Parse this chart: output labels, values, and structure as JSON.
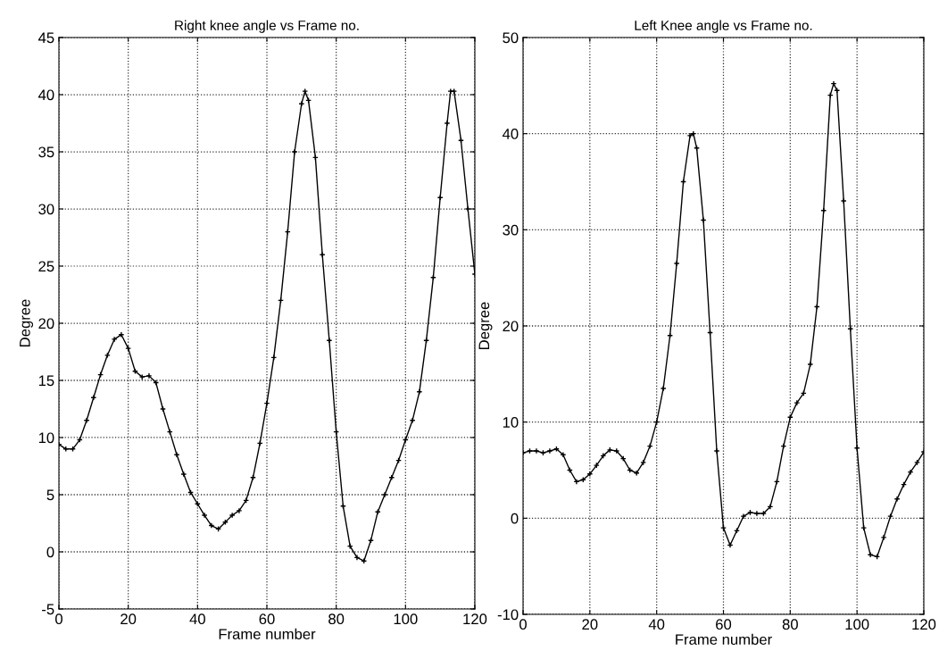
{
  "chart_data": [
    {
      "type": "line",
      "title": "Right knee angle vs Frame no.",
      "xlabel": "Frame number",
      "ylabel": "Degree",
      "xlim": [
        0,
        120
      ],
      "ylim": [
        -5,
        45
      ],
      "xticks": [
        0,
        20,
        40,
        60,
        80,
        100,
        120
      ],
      "yticks": [
        -5,
        0,
        5,
        10,
        15,
        20,
        25,
        30,
        35,
        40,
        45
      ],
      "grid": true,
      "marker": "cross",
      "line_style": "solid",
      "x": [
        0,
        2,
        4,
        6,
        8,
        10,
        12,
        14,
        16,
        18,
        20,
        22,
        24,
        26,
        28,
        30,
        32,
        34,
        36,
        38,
        40,
        42,
        44,
        46,
        48,
        50,
        52,
        54,
        56,
        58,
        60,
        62,
        64,
        66,
        68,
        70,
        71,
        72,
        74,
        76,
        78,
        80,
        82,
        84,
        86,
        88,
        90,
        92,
        94,
        96,
        98,
        100,
        102,
        104,
        106,
        108,
        110,
        112,
        113,
        114,
        116,
        118,
        120
      ],
      "series": [
        {
          "color": "#000000",
          "values": [
            9.4,
            9.0,
            9.0,
            9.8,
            11.5,
            13.5,
            15.5,
            17.2,
            18.6,
            19.0,
            17.8,
            15.8,
            15.3,
            15.4,
            14.8,
            12.5,
            10.5,
            8.5,
            6.8,
            5.2,
            4.2,
            3.2,
            2.3,
            2.0,
            2.6,
            3.2,
            3.6,
            4.5,
            6.5,
            9.5,
            13.0,
            17.0,
            22.0,
            28.0,
            35.0,
            39.2,
            40.3,
            39.5,
            34.5,
            26.0,
            18.5,
            10.5,
            4.0,
            0.5,
            -0.5,
            -0.8,
            1.0,
            3.5,
            5.0,
            6.5,
            8.0,
            9.8,
            11.5,
            14.0,
            18.5,
            24.0,
            31.0,
            37.5,
            40.3,
            40.3,
            36.0,
            30.0,
            24.3
          ]
        }
      ]
    },
    {
      "type": "line",
      "title": "Left Knee angle vs Frame no.",
      "xlabel": "Frame number",
      "ylabel": "Degree",
      "xlim": [
        0,
        120
      ],
      "ylim": [
        -10,
        50
      ],
      "xticks": [
        0,
        20,
        40,
        60,
        80,
        100,
        120
      ],
      "yticks": [
        -10,
        0,
        10,
        20,
        30,
        40,
        50
      ],
      "grid": true,
      "marker": "cross",
      "line_style": "solid",
      "x": [
        0,
        2,
        4,
        6,
        8,
        10,
        12,
        14,
        16,
        18,
        20,
        22,
        24,
        26,
        28,
        30,
        32,
        34,
        36,
        38,
        40,
        42,
        44,
        46,
        48,
        50,
        51,
        52,
        54,
        56,
        58,
        60,
        62,
        64,
        66,
        68,
        70,
        72,
        74,
        76,
        78,
        80,
        82,
        84,
        86,
        88,
        90,
        92,
        93,
        94,
        96,
        98,
        100,
        102,
        104,
        106,
        108,
        110,
        112,
        114,
        116,
        118,
        120
      ],
      "series": [
        {
          "color": "#000000",
          "values": [
            6.8,
            7.0,
            7.0,
            6.8,
            7.0,
            7.2,
            6.6,
            5.0,
            3.8,
            4.0,
            4.6,
            5.5,
            6.5,
            7.1,
            7.0,
            6.2,
            5.0,
            4.7,
            5.8,
            7.5,
            10.0,
            13.5,
            19.0,
            26.5,
            35.0,
            39.8,
            40.0,
            38.5,
            31.0,
            19.3,
            7.0,
            -1.0,
            -2.8,
            -1.3,
            0.2,
            0.6,
            0.5,
            0.5,
            1.2,
            3.8,
            7.5,
            10.5,
            12.0,
            13.0,
            16.0,
            22.0,
            32.0,
            44.0,
            45.2,
            44.5,
            33.0,
            19.7,
            7.3,
            -1.0,
            -3.8,
            -4.0,
            -2.0,
            0.2,
            2.0,
            3.5,
            4.8,
            5.8,
            6.9
          ]
        }
      ]
    }
  ]
}
